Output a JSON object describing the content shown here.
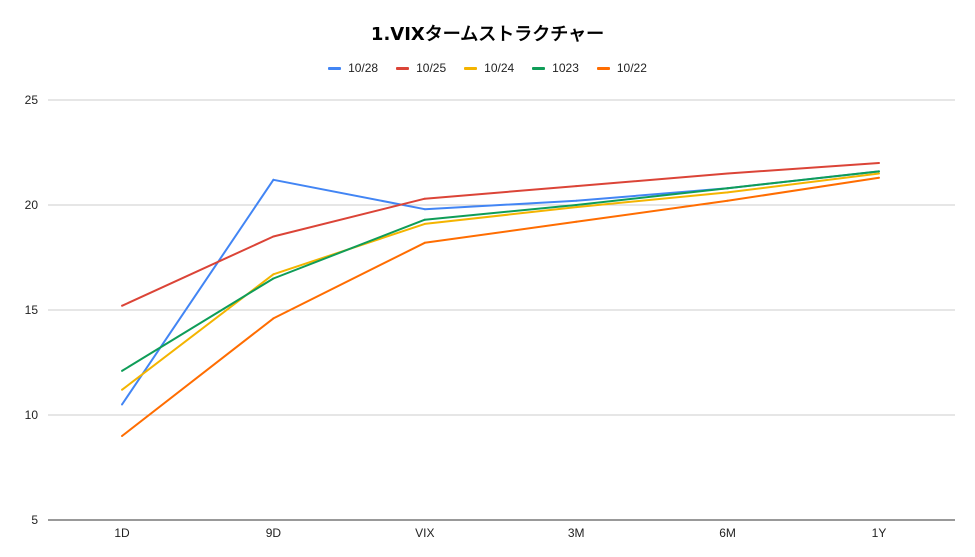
{
  "chart_data": {
    "type": "line",
    "title": "1.VIXタームストラクチャー",
    "xlabel": "",
    "ylabel": "",
    "categories": [
      "1D",
      "9D",
      "VIX",
      "3M",
      "6M",
      "1Y"
    ],
    "ylim": [
      5,
      25
    ],
    "yticks": [
      "5",
      "10",
      "15",
      "20",
      "25"
    ],
    "grid": true,
    "legend_position": "top",
    "series": [
      {
        "name": "10/28",
        "color": "#4285f4",
        "values": [
          10.5,
          21.2,
          19.8,
          20.2,
          20.8,
          21.6
        ]
      },
      {
        "name": "10/25",
        "color": "#db4437",
        "values": [
          15.2,
          18.5,
          20.3,
          20.9,
          21.5,
          22.0
        ]
      },
      {
        "name": "10/24",
        "color": "#f4b400",
        "values": [
          11.2,
          16.7,
          19.1,
          19.9,
          20.6,
          21.5
        ]
      },
      {
        "name": "1023",
        "color": "#0f9d58",
        "values": [
          12.1,
          16.5,
          19.3,
          20.0,
          20.8,
          21.6
        ]
      },
      {
        "name": "10/22",
        "color": "#ff6d01",
        "values": [
          9.0,
          14.6,
          18.2,
          19.2,
          20.2,
          21.3
        ]
      }
    ]
  }
}
